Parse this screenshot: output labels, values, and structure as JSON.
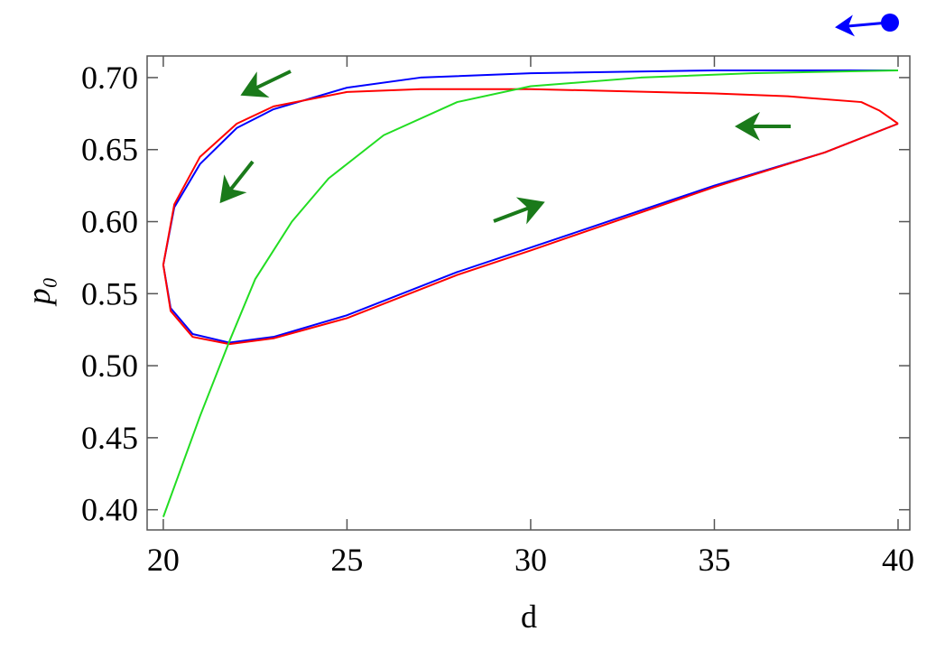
{
  "chart_data": {
    "type": "line",
    "xlabel": "d",
    "ylabel": "p₀",
    "xlim": [
      19.56,
      40.32
    ],
    "ylim": [
      0.386,
      0.715
    ],
    "xticks": [
      20,
      25,
      30,
      35,
      40
    ],
    "yticks": [
      {
        "value": 0.4,
        "label": "0.40"
      },
      {
        "value": 0.45,
        "label": "0.45"
      },
      {
        "value": 0.5,
        "label": "0.50"
      },
      {
        "value": 0.55,
        "label": "0.55"
      },
      {
        "value": 0.6,
        "label": "0.60"
      },
      {
        "value": 0.65,
        "label": "0.65"
      },
      {
        "value": 0.7,
        "label": "0.70"
      }
    ],
    "series": [
      {
        "color": "#0000ff",
        "x": [
          40,
          35,
          30,
          27,
          25,
          23,
          22,
          21,
          20.3,
          20.0,
          20.2,
          20.8,
          21.8,
          23,
          25,
          28,
          30,
          35,
          38,
          40
        ],
        "values": [
          0.705,
          0.705,
          0.703,
          0.7,
          0.693,
          0.678,
          0.665,
          0.64,
          0.61,
          0.57,
          0.54,
          0.522,
          0.516,
          0.52,
          0.535,
          0.565,
          0.582,
          0.625,
          0.648,
          0.668
        ]
      },
      {
        "color": "#ff0000",
        "x": [
          40,
          39.5,
          39,
          37,
          35,
          30,
          27,
          25,
          23,
          22,
          21,
          20.3,
          20.0,
          20.2,
          20.8,
          21.8,
          23,
          25,
          28,
          30,
          35,
          38,
          40
        ],
        "values": [
          0.668,
          0.677,
          0.683,
          0.687,
          0.689,
          0.692,
          0.692,
          0.69,
          0.68,
          0.668,
          0.645,
          0.612,
          0.57,
          0.538,
          0.52,
          0.515,
          0.519,
          0.533,
          0.563,
          0.58,
          0.624,
          0.648,
          0.668
        ]
      },
      {
        "color": "#22dd22",
        "x": [
          20,
          20.5,
          21,
          21.8,
          22.5,
          23.5,
          24.5,
          26,
          28,
          30,
          33,
          36,
          40
        ],
        "values": [
          0.395,
          0.43,
          0.465,
          0.517,
          0.56,
          0.6,
          0.63,
          0.66,
          0.683,
          0.694,
          0.7,
          0.703,
          0.705
        ]
      }
    ]
  }
}
